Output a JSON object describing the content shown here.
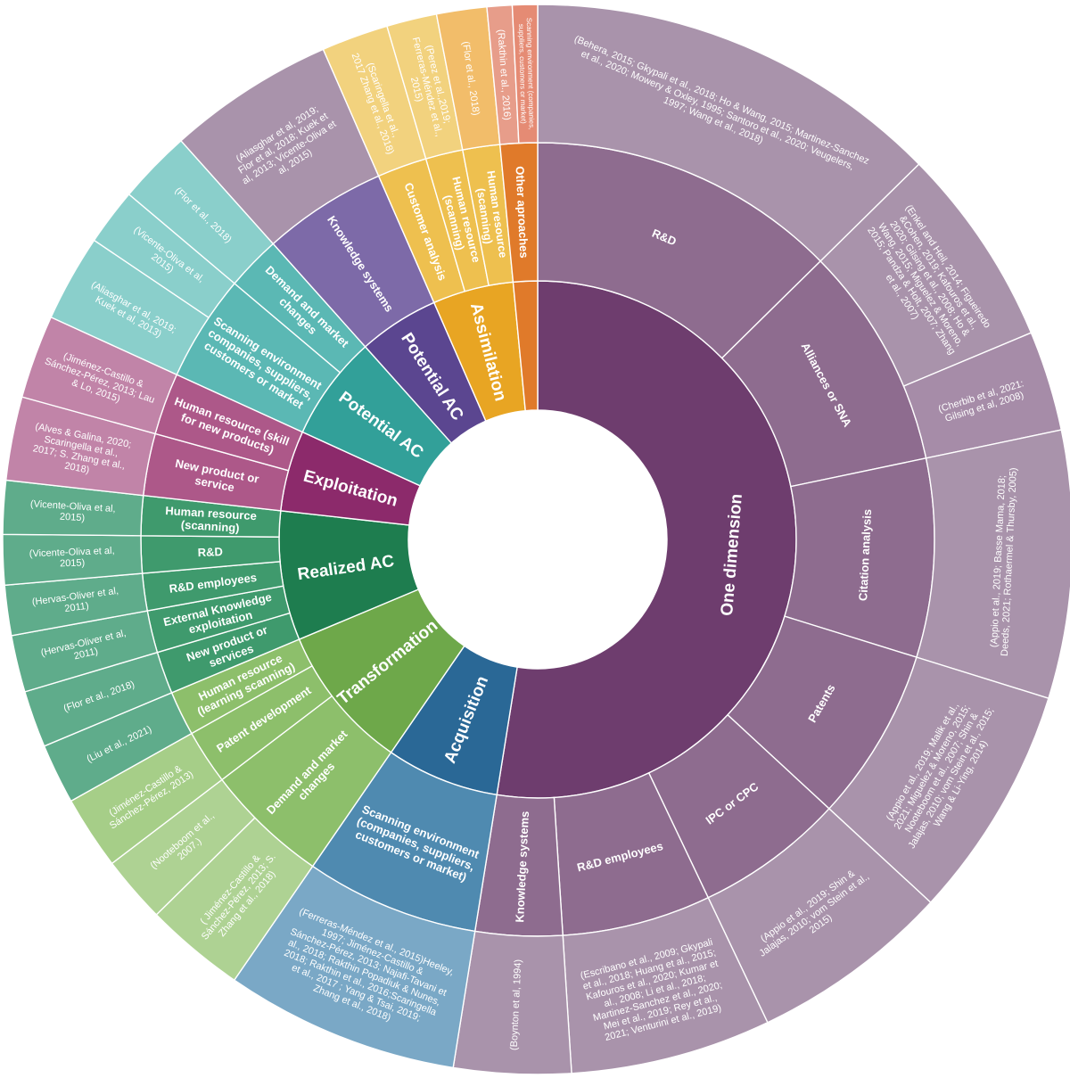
{
  "chart_data": {
    "type": "sunburst",
    "title": "",
    "center": {
      "label": ""
    },
    "palette": {
      "one_dimension": "#6e3d6e",
      "one_dimension_mid": "#8e6c8f",
      "one_dimension_outer": "#a68ca8",
      "assimilation": "#e8a523",
      "potential": "#5b4690",
      "potential_teal": "#3aa7a3",
      "exploitation": "#8c2a6b",
      "realized": "#1e7d4f",
      "transformation": "#6ea84a",
      "acquisition": "#2a6896"
    },
    "root_children": [
      {
        "name": "One dimension",
        "color": "#6e3d6e",
        "value": 52,
        "children": [
          {
            "name": "R&D",
            "color": "#8e6c8f",
            "value": 12.5,
            "children": [
              {
                "name": "(Behera, 2015; Gkypali et al., 2018; Ho & Wang, 2015; Martinez-Sanchez et al., 2020; Mowery & Oxley, 1995; Santoro et al., 2020; Veugelers, 1997; Wang et al., 2018)",
                "color": "#a993ab",
                "value": 12.5
              }
            ]
          },
          {
            "name": "Alliances or SNA",
            "color": "#8e6c8f",
            "value": 9,
            "children": [
              {
                "name": "(Enkel and Heil, 2014; Figueiredo &Cohen, 2019; Kafouros et al., 2020; Gilsing et al., 2008; Ho & Wang, 2015; Miguelez & Moreno, 2015; Pandza & Holt, 2007; Zhang et al., 2007)",
                "color": "#a993ab",
                "value": 6
              },
              {
                "name": "(Cherbib et al, 2021: Gilsing et al, 2008)",
                "color": "#a68ca8",
                "value": 3
              }
            ]
          },
          {
            "name": "Citation analysis",
            "color": "#8e6c8f",
            "value": 8,
            "children": [
              {
                "name": "(Appio et al., 2019; Basse Mama, 2018; Deeds, 2021; Rothaermel & Thursby, 2005)",
                "color": "#a993ab",
                "value": 8
              }
            ]
          },
          {
            "name": "Patents",
            "color": "#8e6c8f",
            "value": 7,
            "children": [
              {
                "name": "(Appio et al., 2019; Malik et al., 2021; Miguelez & Moreno, 2015; Nooteboom et al., 2007; Shin & Jalajas, 2010; vom Stein et al., 2015; Wang & Li-Ying, 2014)",
                "color": "#a993ab",
                "value": 7
              }
            ]
          },
          {
            "name": "IPC or CPC",
            "color": "#8e6c8f",
            "value": 6,
            "children": [
              {
                "name": "(Appio et al., 2019; Shin & Jalajas, 2010; vom Stein et al., 2015)",
                "color": "#a993ab",
                "value": 6
              }
            ]
          },
          {
            "name": "R&D employees",
            "color": "#8e6c8f",
            "value": 6,
            "children": [
              {
                "name": "(Escribano et al., 2009; Gkypali et al., 2018; Huang et al., 2015; Kafouros et al., 2020; Kumar et al., 2008; Li et al., 2018; Martinez-Sanchez et al., 2020; Mei et al., 2019; Rey et al., 2021; Venturini et al., 2019)",
                "color": "#a993ab",
                "value": 6
              }
            ]
          },
          {
            "name": "Knowledge systems",
            "color": "#8e6c8f",
            "value": 3.5,
            "children": [
              {
                "name": "(Boynton et al, 1994)",
                "color": "#a993ab",
                "value": 3.5
              }
            ]
          }
        ]
      },
      {
        "name": "Acquisition",
        "color": "#2a6896",
        "value": 7,
        "children": [
          {
            "name": "Scanning environment (companies, suppliers, customers or market)",
            "color": "#4f8ab0",
            "value": 7,
            "children": [
              {
                "name": "(Ferreras-Méndez et al., 2015)Heeley, 1997; Jiménez-Castillo & Sánchez-Pérez, 2013; Najafi-Tavani et al., 2018; Rakthin Popadiuk & Nunes, 2018; Rakthin et al., 2016;Scaringella et al., 2017 ; Yang & Tsai, 2019; Zhang et al., 2018)",
                "color": "#7aa8c6",
                "value": 7
              }
            ]
          }
        ]
      },
      {
        "name": "Transformation",
        "color": "#6ea84a",
        "value": 9,
        "children": [
          {
            "name": "Demand and market changes",
            "color": "#8dbf6b",
            "value": 5,
            "children": [
              {
                "name": "( Jiménez-Castillo & Sánchez-Pérez, 2013; S. Zhang et al., 2018)",
                "color": "#aed293",
                "value": 3
              },
              {
                "name": "(Nooteboom et al., 2007.)",
                "color": "#aed293",
                "value": 2
              }
            ]
          },
          {
            "name": "Patent development",
            "color": "#8dbf6b",
            "value": 2.2,
            "children": [
              {
                "name": "(Jiménez-Castillo & Sánchez-Pérez, 2013)",
                "color": "#a6ce88",
                "value": 2.2
              }
            ]
          },
          {
            "name": "Human resource (learning scanning)",
            "color": "#8dbf6b",
            "value": 1.8,
            "children": [
              {
                "name": "(Liu et al., 2021)",
                "color": "#5fac8b",
                "value": 1.8
              }
            ]
          }
        ]
      },
      {
        "name": "Realized AC",
        "color": "#1e7d4f",
        "value": 8,
        "children": [
          {
            "name": "New product or services",
            "color": "#3f9a6d",
            "value": 1.7,
            "children": [
              {
                "name": "(Flor et al., 2018)",
                "color": "#5fac8b",
                "value": 1.7
              }
            ]
          },
          {
            "name": "External Knowledge exploitation",
            "color": "#3f9a6d",
            "value": 1.7,
            "children": [
              {
                "name": "(Hervas-Oliver et al, 2011)",
                "color": "#5fac8b",
                "value": 1.7
              }
            ]
          },
          {
            "name": "R&D employees",
            "color": "#3f9a6d",
            "value": 1.5,
            "children": [
              {
                "name": "(Hervas-Oliver et al, 2011)",
                "color": "#5fac8b",
                "value": 1.5
              }
            ]
          },
          {
            "name": "R&D",
            "color": "#3f9a6d",
            "value": 1.5,
            "children": [
              {
                "name": "(Vicente-Oliva et al, 2015)",
                "color": "#5fac8b",
                "value": 1.5
              }
            ]
          },
          {
            "name": "Human resource (scanning)",
            "color": "#3f9a6d",
            "value": 1.6,
            "children": [
              {
                "name": "(Vicente-Oliva et al, 2015)",
                "color": "#5fac8b",
                "value": 1.6
              }
            ]
          }
        ]
      },
      {
        "name": "Exploitation",
        "color": "#8c2a6b",
        "value": 5,
        "children": [
          {
            "name": "New product or service",
            "color": "#ad5889",
            "value": 2.5,
            "children": [
              {
                "name": "(Alves & Galina, 2020; Scaringella et al., 2017; S. Zhang et al., 2018)",
                "color": "#c184a8",
                "value": 2.5
              }
            ]
          },
          {
            "name": "Human resource (skill for new products)",
            "color": "#ad5889",
            "value": 2.5,
            "children": [
              {
                "name": "(Jiménez-Castillo & Sánchez-Pérez, 2013; Lau & Lo, 2015)",
                "color": "#c184a8",
                "value": 2.5
              }
            ]
          }
        ]
      },
      {
        "name": "Potential AC",
        "color": "#32a099",
        "value": 6.5,
        "children": [
          {
            "name": "Scanning environment companies, suppliers, customers or market",
            "color": "#5bb8b4",
            "value": 4.3,
            "children": [
              {
                "name": "(Aliasghar et al, 2019; Kuek et al, 2013)",
                "color": "#8acfcb",
                "value": 2.6
              },
              {
                "name": "(Vicente-Oliva et al, 2015)",
                "color": "#8acfcb",
                "value": 1.7
              }
            ]
          },
          {
            "name": "Demand and market changes",
            "color": "#5bb8b4",
            "value": 2.2,
            "children": [
              {
                "name": "(Flor et al., 2018)",
                "color": "#8acfcb",
                "value": 2.2
              }
            ]
          }
        ]
      },
      {
        "name": "Potential AC",
        "color": "#5b4690",
        "value": 5,
        "children": [
          {
            "name": "Knowledge systems",
            "color": "#7d6aa8",
            "value": 5,
            "children": [
              {
                "name": "(Aliasghar et al, 2019; Flor et al, 2018; Kuek et al, 2013; Vicente-Oliva et al, 2015)",
                "color": "#a993ab",
                "value": 5
              }
            ]
          }
        ]
      },
      {
        "name": "Assimilation",
        "color": "#e8a523",
        "value": 5,
        "children": [
          {
            "name": "Customer analysis",
            "color": "#eec04f",
            "value": 2,
            "children": [
              {
                "name": "(Scaringella et al., 2017 Zhang et al., 2018)",
                "color": "#f2d27e",
                "value": 2
              }
            ]
          },
          {
            "name": "Human resource (scanning)",
            "color": "#eec04f",
            "value": 1.5,
            "children": [
              {
                "name": "(Perez et al.,2019; Ferreras-Méndez et al., 2015)",
                "color": "#f2d27e",
                "value": 1.5
              }
            ]
          },
          {
            "name": "Human resource (scanning)",
            "color": "#eec04f",
            "value": 1.5,
            "children": [
              {
                "name": "(Flor et al., 2018)",
                "color": "#f2bd6a",
                "value": 1.5
              }
            ]
          }
        ]
      },
      {
        "name": "",
        "color": "#e07a2a",
        "value": 1.5,
        "children": [
          {
            "name": "Other aproaches",
            "color": "#e07a2a",
            "value": 1.5,
            "children": [
              {
                "name": "(Rakthin et al., 2016)",
                "color": "#e79d8a",
                "value": 0.75
              },
              {
                "name": "Scanning environment (companies, suppliers, customers or market)",
                "color": "#e58b74",
                "value": 0.75
              }
            ]
          }
        ]
      }
    ]
  }
}
